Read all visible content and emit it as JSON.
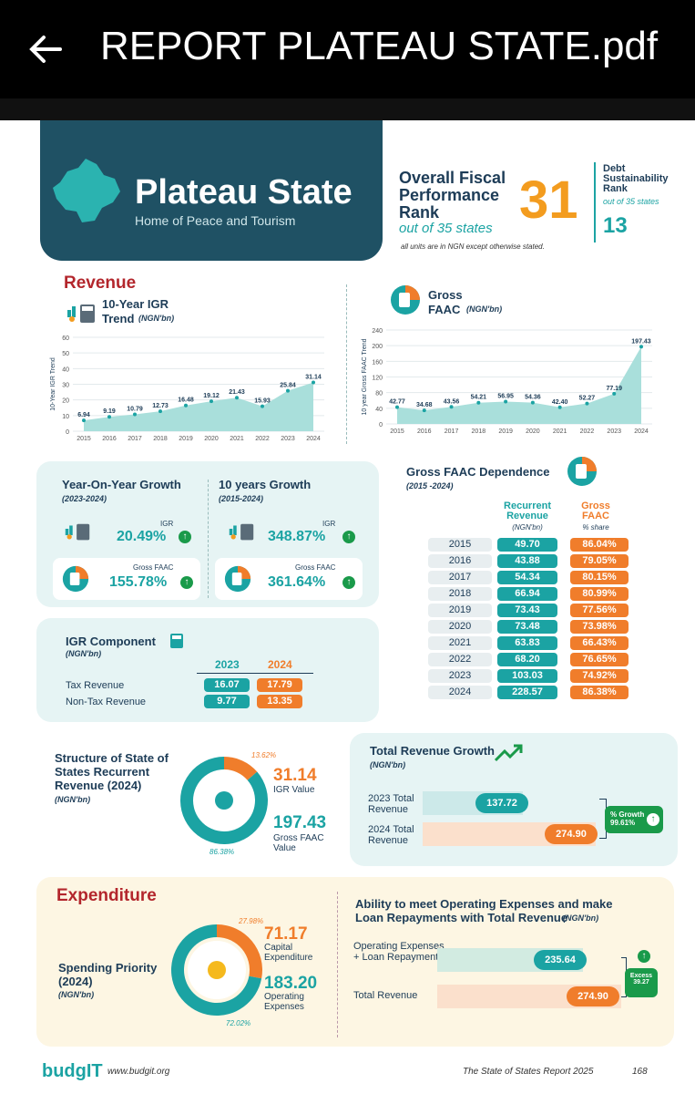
{
  "topbar": {
    "title": "REPORT PLATEAU STATE.pdf"
  },
  "hero": {
    "state": "Plateau State",
    "tagline": "Home of Peace and Tourism"
  },
  "ofp": {
    "title": "Overall Fiscal Performance Rank",
    "rank": "31",
    "out_of": "out of 35 states",
    "units_note": "all units are in NGN except otherwise stated."
  },
  "debt": {
    "title": "Debt Sustainability Rank",
    "out_of": "out of 35 states",
    "rank": "13"
  },
  "revenue": {
    "heading": "Revenue"
  },
  "igr_chart": {
    "title": "10-Year IGR",
    "title2": "Trend",
    "unit": "(NGN'bn)",
    "ylabel": "10-Year IGR Trend"
  },
  "faac_chart": {
    "title": "Gross",
    "title2": "FAAC",
    "unit": "(NGN'bn)",
    "ylabel": "10 year Gross FAAC Trend"
  },
  "chart_data": [
    {
      "type": "area",
      "title": "10-Year IGR Trend",
      "ylabel": "10-Year IGR Trend",
      "x": [
        "2015",
        "2016",
        "2017",
        "2018",
        "2019",
        "2020",
        "2021",
        "2022",
        "2023",
        "2024"
      ],
      "values": [
        6.94,
        9.19,
        10.79,
        12.73,
        16.48,
        19.12,
        21.43,
        15.93,
        25.84,
        31.14
      ],
      "labels": [
        "6.94",
        "9.19",
        "10.79",
        "12.73",
        "16.48",
        "19.12",
        "21.43",
        "15.93",
        "25.84",
        "31.14"
      ],
      "yticks": [
        "0",
        "10",
        "20",
        "30",
        "40",
        "50",
        "60"
      ],
      "ylim": [
        0,
        60
      ]
    },
    {
      "type": "area",
      "title": "Gross FAAC",
      "ylabel": "10 year Gross FAAC Trend",
      "x": [
        "2015",
        "2016",
        "2017",
        "2018",
        "2019",
        "2020",
        "2021",
        "2022",
        "2023",
        "2024"
      ],
      "values": [
        42.77,
        34.68,
        43.56,
        54.21,
        56.95,
        54.36,
        42.4,
        52.27,
        77.19,
        197.43
      ],
      "labels": [
        "42.77",
        "34.68",
        "43.56",
        "54.21",
        "56.95",
        "54.36",
        "42.40",
        "52.27",
        "77.19",
        "197.43"
      ],
      "yticks": [
        "0",
        "40",
        "80",
        "120",
        "160",
        "200",
        "240"
      ],
      "ylim": [
        0,
        240
      ]
    },
    {
      "type": "pie",
      "title": "Structure of State of States Recurrent Revenue (2024)",
      "slices": [
        {
          "name": "IGR Value",
          "value": 31.14,
          "pct": "13.62%"
        },
        {
          "name": "Gross FAAC Value",
          "value": 197.43,
          "pct": "86.38%"
        }
      ]
    },
    {
      "type": "pie",
      "title": "Spending Priority (2024)",
      "slices": [
        {
          "name": "Capital Expenditure",
          "value": 71.17,
          "pct": "27.98%"
        },
        {
          "name": "Operating Expenses",
          "value": 183.2,
          "pct": "72.02%"
        }
      ]
    }
  ],
  "growth": {
    "yoy_title": "Year-On-Year Growth",
    "yoy_period": "(2023-2024)",
    "ten_title": "10 years Growth",
    "ten_period": "(2015-2024)",
    "igr_label": "IGR",
    "faac_label": "Gross FAAC",
    "yoy_igr": "20.49%",
    "yoy_faac": "155.78%",
    "ten_igr": "348.87%",
    "ten_faac": "361.64%"
  },
  "dependence": {
    "title": "Gross FAAC Dependence",
    "period": "(2015 -2024)",
    "col1": "Recurrent Revenue",
    "col1_unit": "(NGN'bn)",
    "col2": "Gross FAAC",
    "col2_unit": "% share",
    "rows": [
      {
        "year": "2015",
        "rev": "49.70",
        "share": "86.04%"
      },
      {
        "year": "2016",
        "rev": "43.88",
        "share": "79.05%"
      },
      {
        "year": "2017",
        "rev": "54.34",
        "share": "80.15%"
      },
      {
        "year": "2018",
        "rev": "66.94",
        "share": "80.99%"
      },
      {
        "year": "2019",
        "rev": "73.43",
        "share": "77.56%"
      },
      {
        "year": "2020",
        "rev": "73.48",
        "share": "73.98%"
      },
      {
        "year": "2021",
        "rev": "63.83",
        "share": "66.43%"
      },
      {
        "year": "2022",
        "rev": "68.20",
        "share": "76.65%"
      },
      {
        "year": "2023",
        "rev": "103.03",
        "share": "74.92%"
      },
      {
        "year": "2024",
        "rev": "228.57",
        "share": "86.38%"
      }
    ]
  },
  "igr_component": {
    "title": "IGR Component",
    "unit": "(NGN'bn)",
    "y1": "2023",
    "y2": "2024",
    "rows": [
      {
        "name": "Tax Revenue",
        "v1": "16.07",
        "v2": "17.79"
      },
      {
        "name": "Non-Tax Revenue",
        "v1": "9.77",
        "v2": "13.35"
      }
    ]
  },
  "structure": {
    "title": "Structure of State of States Recurrent Revenue (2024)",
    "unit": "(NGN'bn)",
    "igr_value": "31.14",
    "igr_label": "IGR Value",
    "faac_value": "197.43",
    "faac_label": "Gross FAAC Value",
    "igr_pct": "13.62%",
    "faac_pct": "86.38%"
  },
  "trg": {
    "title": "Total Revenue Growth",
    "unit": "(NGN'bn)",
    "row1": "2023 Total Revenue",
    "row2": "2024 Total Revenue",
    "v1": "137.72",
    "v2": "274.90",
    "growth_label": "% Growth",
    "growth_value": "99.61%"
  },
  "expenditure": {
    "heading": "Expenditure",
    "title": "Spending Priority (2024)",
    "unit": "(NGN'bn)",
    "cap_value": "71.17",
    "cap_label": "Capital Expenditure",
    "op_value": "183.20",
    "op_label": "Operating Expenses",
    "cap_pct": "27.98%",
    "op_pct": "72.02%"
  },
  "ability": {
    "title": "Ability to meet Operating Expenses and make Loan Repayments with Total Revenue",
    "unit": "(NGN'bn)",
    "row1": "Operating Expenses + Loan Repayments",
    "row2": "Total Revenue",
    "v1": "235.64",
    "v2": "274.90",
    "excess_label": "Excess",
    "excess_value": "39.27"
  },
  "footer": {
    "brand": "budgIT",
    "url": "www.budgit.org",
    "report": "The State of States Report 2025",
    "page": "168"
  },
  "colors": {
    "teal": "#1ba3a3",
    "orange": "#f07d2b",
    "navy": "#1d3c57",
    "red": "#b3262c"
  }
}
